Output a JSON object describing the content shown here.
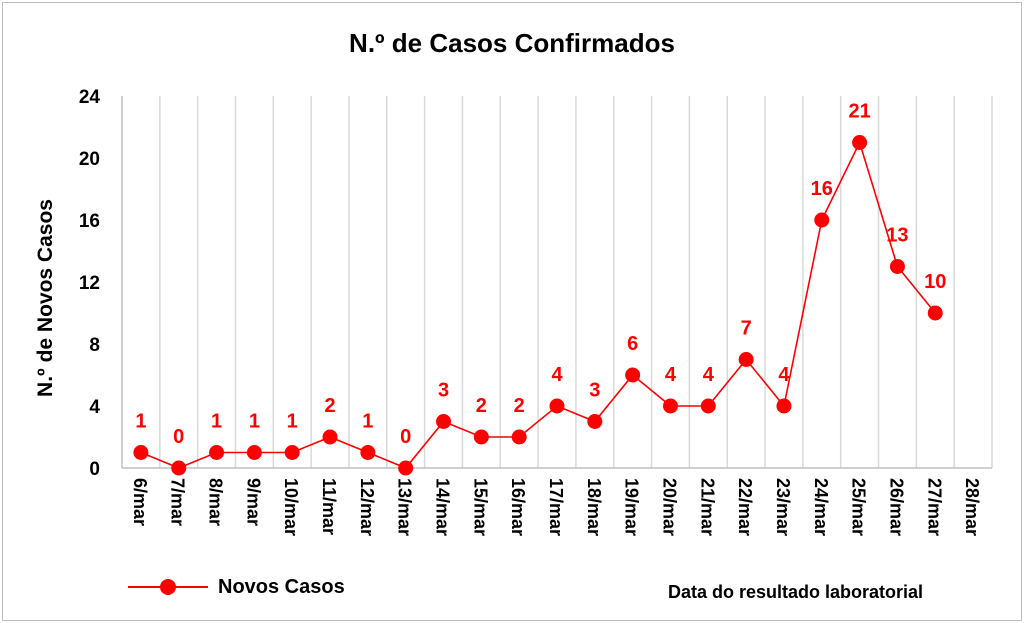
{
  "chart_data": {
    "type": "line",
    "title": "N.º de Casos Confirmados",
    "ylabel": "N.º de Novos Casos",
    "xlabel": "Data do resultado laboratorial",
    "ylim": [
      0,
      24
    ],
    "yticks": [
      "0",
      "4",
      "8",
      "12",
      "16",
      "20",
      "24"
    ],
    "categories": [
      "6/mar",
      "7/mar",
      "8/mar",
      "9/mar",
      "10/mar",
      "11/mar",
      "12/mar",
      "13/mar",
      "14/mar",
      "15/mar",
      "16/mar",
      "17/mar",
      "18/mar",
      "19/mar",
      "20/mar",
      "21/mar",
      "22/mar",
      "23/mar",
      "24/mar",
      "25/mar",
      "26/mar",
      "27/mar",
      "28/mar"
    ],
    "series": [
      {
        "name": "Novos Casos",
        "color": "#ff0000",
        "values": [
          1,
          0,
          1,
          1,
          1,
          2,
          1,
          0,
          3,
          2,
          2,
          4,
          3,
          6,
          4,
          4,
          7,
          4,
          16,
          21,
          13,
          10,
          null
        ]
      }
    ],
    "grid": "vertical",
    "legend": "bottom-left"
  }
}
